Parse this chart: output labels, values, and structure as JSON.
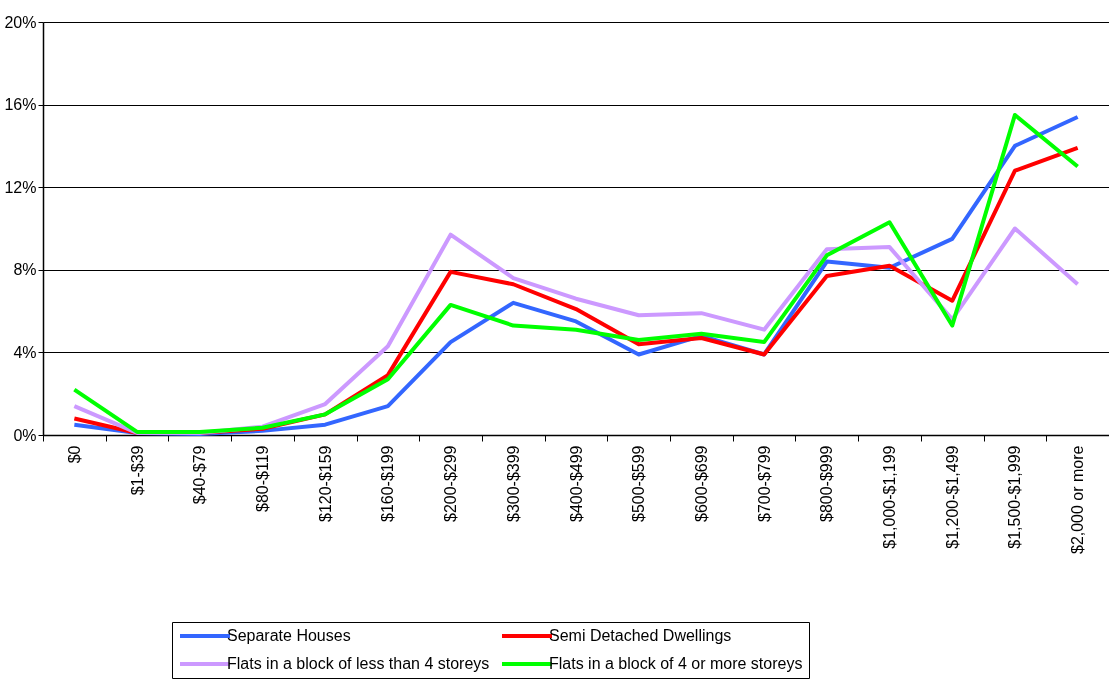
{
  "chart_data": {
    "type": "line",
    "categories": [
      "$0",
      "$1-$39",
      "$40-$79",
      "$80-$119",
      "$120-$159",
      "$160-$199",
      "$200-$299",
      "$300-$399",
      "$400-$499",
      "$500-$599",
      "$600-$699",
      "$700-$799",
      "$800-$999",
      "$1,000-$1,199",
      "$1,200-$1,499",
      "$1,500-$1,999",
      "$2,000 or more"
    ],
    "series": [
      {
        "name": "Separate Houses",
        "color": "#3366ff",
        "values": [
          0.5,
          0.1,
          0.05,
          0.2,
          0.5,
          1.4,
          4.5,
          6.4,
          5.5,
          3.9,
          4.8,
          3.9,
          8.4,
          8.1,
          9.5,
          14.0,
          15.4
        ]
      },
      {
        "name": "Semi Detached Dwellings",
        "color": "#ff0000",
        "values": [
          0.8,
          0.1,
          0.1,
          0.3,
          1.0,
          2.9,
          7.9,
          7.3,
          6.1,
          4.4,
          4.7,
          3.9,
          7.7,
          8.2,
          6.5,
          12.8,
          13.9
        ]
      },
      {
        "name": "Flats in a block of less than 4 storeys",
        "color": "#cc99ff",
        "values": [
          1.4,
          0.1,
          0.1,
          0.4,
          1.5,
          4.3,
          9.7,
          7.6,
          6.6,
          5.8,
          5.9,
          5.1,
          9.0,
          9.1,
          5.6,
          10.0,
          7.3
        ]
      },
      {
        "name": "Flats in a block of 4 or more storeys",
        "color": "#00ff00",
        "values": [
          2.2,
          0.15,
          0.15,
          0.35,
          1.0,
          2.7,
          6.3,
          5.3,
          5.1,
          4.6,
          4.9,
          4.5,
          8.7,
          10.3,
          5.3,
          15.5,
          13.0
        ]
      }
    ],
    "ylim": [
      0,
      20
    ],
    "yticks": [
      {
        "value": 0,
        "label": "0%"
      },
      {
        "value": 4,
        "label": "4%"
      },
      {
        "value": 8,
        "label": "8%"
      },
      {
        "value": 12,
        "label": "12%"
      },
      {
        "value": 16,
        "label": "16%"
      },
      {
        "value": 20,
        "label": "20%"
      }
    ],
    "grid": "y",
    "legend": "bottom"
  }
}
